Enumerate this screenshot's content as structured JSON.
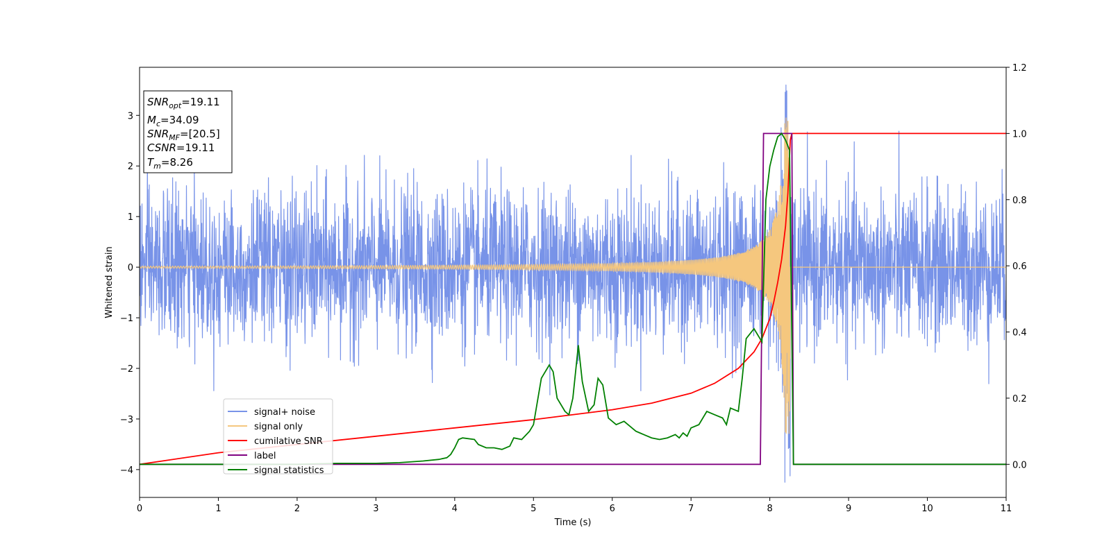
{
  "chart_data": {
    "type": "line",
    "title": "",
    "xlabel": "Time (s)",
    "ylabel": "Whitened strain",
    "xlim": [
      0,
      11
    ],
    "ylim_left": [
      -4.55,
      3.95
    ],
    "ylim_right": [
      -0.1,
      1.2
    ],
    "x_ticks": [
      "0",
      "1",
      "2",
      "3",
      "4",
      "5",
      "6",
      "7",
      "8",
      "9",
      "10",
      "11"
    ],
    "y_left_ticks": [
      {
        "value": 3,
        "label": "3"
      },
      {
        "value": 2,
        "label": "2"
      },
      {
        "value": 1,
        "label": "1"
      },
      {
        "value": 0,
        "label": "0"
      },
      {
        "value": -1,
        "label": "−1"
      },
      {
        "value": -2,
        "label": "−2"
      },
      {
        "value": -3,
        "label": "−3"
      },
      {
        "value": -4,
        "label": "−4"
      }
    ],
    "y_right_ticks": [
      {
        "value": 1.2,
        "label": "1.2"
      },
      {
        "value": 1.0,
        "label": "1.0"
      },
      {
        "value": 0.8,
        "label": "0.8"
      },
      {
        "value": 0.6,
        "label": "0.6"
      },
      {
        "value": 0.4,
        "label": "0.4"
      },
      {
        "value": 0.2,
        "label": "0.2"
      },
      {
        "value": 0.0,
        "label": "0.0"
      }
    ],
    "colors": {
      "noise": "#7893e8",
      "signal": "#f5c77e",
      "csnr": "#ff0000",
      "label": "#800080",
      "stat": "#008000"
    },
    "noise": {
      "std": 0.75,
      "spike_max": 3.6,
      "spike_time": 8.24
    },
    "signal": {
      "merger_time": 8.26,
      "start_amplitude": 0.02,
      "peak_amplitude": 3.3
    },
    "series": [
      {
        "name": "signal+ noise",
        "axis": "left"
      },
      {
        "name": "signal only",
        "axis": "left"
      },
      {
        "name": "cumilative SNR",
        "axis": "right",
        "x": [
          0,
          1,
          2,
          3,
          4,
          5,
          6,
          6.5,
          7,
          7.3,
          7.6,
          7.8,
          7.9,
          8.0,
          8.05,
          8.1,
          8.15,
          8.2,
          8.23,
          8.26,
          8.28,
          9,
          10,
          11
        ],
        "y": [
          0.0,
          0.035,
          0.06,
          0.085,
          0.11,
          0.135,
          0.165,
          0.185,
          0.215,
          0.245,
          0.29,
          0.34,
          0.38,
          0.44,
          0.49,
          0.55,
          0.62,
          0.72,
          0.82,
          0.98,
          1.0,
          1.0,
          1.0,
          1.0
        ]
      },
      {
        "name": "label",
        "axis": "right",
        "x": [
          0,
          7.88,
          7.92,
          8.28,
          8.3,
          11
        ],
        "y": [
          0,
          0,
          1,
          1,
          0,
          0
        ]
      },
      {
        "name": "signal statistics",
        "axis": "right",
        "x": [
          0,
          1,
          2,
          2.5,
          3,
          3.3,
          3.6,
          3.8,
          3.9,
          3.95,
          4.0,
          4.05,
          4.1,
          4.25,
          4.3,
          4.4,
          4.5,
          4.6,
          4.7,
          4.75,
          4.85,
          4.95,
          5.0,
          5.1,
          5.2,
          5.25,
          5.3,
          5.4,
          5.45,
          5.5,
          5.57,
          5.62,
          5.7,
          5.77,
          5.82,
          5.88,
          5.95,
          6.05,
          6.15,
          6.2,
          6.3,
          6.35,
          6.4,
          6.5,
          6.6,
          6.7,
          6.8,
          6.85,
          6.9,
          6.95,
          7.0,
          7.1,
          7.2,
          7.3,
          7.4,
          7.45,
          7.5,
          7.6,
          7.65,
          7.7,
          7.8,
          7.9,
          7.95,
          8.0,
          8.05,
          8.1,
          8.15,
          8.2,
          8.25,
          8.3,
          8.35,
          9,
          10,
          11
        ],
        "y": [
          0.0,
          0.0,
          0.0,
          0.003,
          0.003,
          0.005,
          0.01,
          0.015,
          0.02,
          0.03,
          0.05,
          0.075,
          0.08,
          0.075,
          0.06,
          0.05,
          0.05,
          0.045,
          0.055,
          0.08,
          0.075,
          0.1,
          0.12,
          0.26,
          0.3,
          0.28,
          0.2,
          0.16,
          0.15,
          0.2,
          0.36,
          0.25,
          0.16,
          0.18,
          0.26,
          0.24,
          0.14,
          0.12,
          0.13,
          0.12,
          0.1,
          0.095,
          0.09,
          0.08,
          0.075,
          0.08,
          0.09,
          0.08,
          0.095,
          0.085,
          0.11,
          0.12,
          0.16,
          0.15,
          0.14,
          0.12,
          0.17,
          0.16,
          0.26,
          0.38,
          0.41,
          0.37,
          0.8,
          0.9,
          0.95,
          0.99,
          1.0,
          0.98,
          0.95,
          0.0,
          0.0,
          0.0,
          0.0,
          0.0
        ]
      }
    ],
    "legend": {
      "placement": "lower-left",
      "entries": [
        "signal+ noise",
        "signal only",
        "cumilative SNR",
        "label",
        "signal statistics"
      ]
    },
    "grid": false
  },
  "info_box": {
    "snr_opt": {
      "var": "SNR",
      "sub": "opt",
      "value": "=19.11"
    },
    "mc": {
      "var": "M",
      "sub": "c",
      "value": "=34.09"
    },
    "snr_mf": {
      "var": "SNR",
      "sub": "MF",
      "value": "=[20.5]"
    },
    "csnr": {
      "var": "CSNR",
      "value": "=19.11"
    },
    "tm": {
      "var": "T",
      "sub": "m",
      "value": "=8.26"
    }
  }
}
